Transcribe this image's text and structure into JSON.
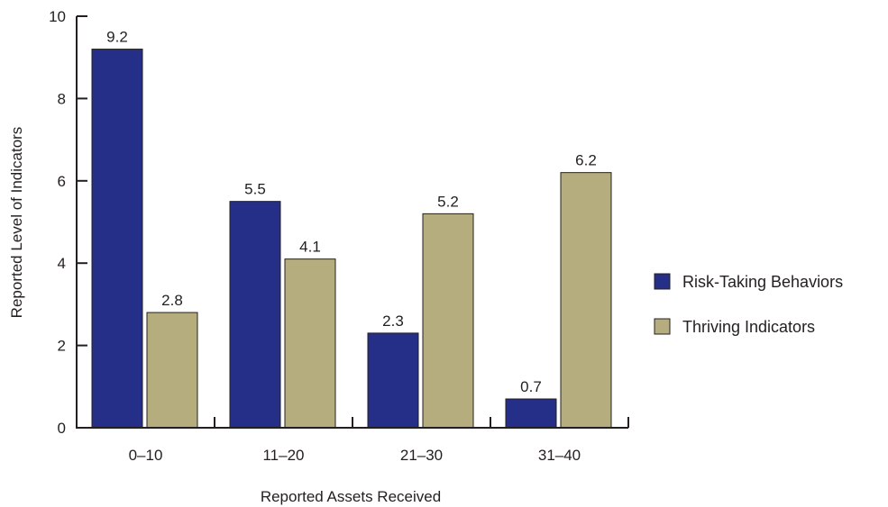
{
  "chart_data": {
    "type": "bar",
    "categories": [
      "0–10",
      "11–20",
      "21–30",
      "31–40"
    ],
    "series": [
      {
        "name": "Risk-Taking Behaviors",
        "values": [
          9.2,
          5.5,
          2.3,
          0.7
        ],
        "color": "#262f87"
      },
      {
        "name": "Thriving Indicators",
        "values": [
          2.8,
          4.1,
          5.2,
          6.2
        ],
        "color": "#b5ad7d"
      }
    ],
    "data_labels": [
      [
        "9.2",
        "5.5",
        "2.3",
        "0.7"
      ],
      [
        "2.8",
        "4.1",
        "5.2",
        "6.2"
      ]
    ],
    "title": "",
    "xlabel": "Reported Assets Received",
    "ylabel": "Reported Level of Indicators",
    "ylim": [
      0,
      10
    ],
    "yticks": [
      "0",
      "2",
      "4",
      "6",
      "8",
      "10"
    ],
    "grid": false,
    "legend": "right"
  }
}
